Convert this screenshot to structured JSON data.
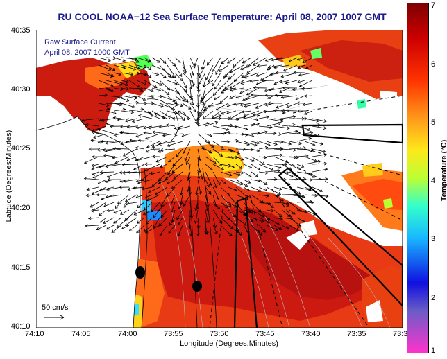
{
  "title": "RU COOL  NOAA−12  Sea Surface Temperature:  April 08, 2007 1007 GMT",
  "legend": {
    "line1": "Raw Surface Current",
    "line2": "April 08, 2007 1000 GMT"
  },
  "axes": {
    "xlabel": "Longitude (Degrees:Minutes)",
    "ylabel": "Latitude (Degrees:Minutes)",
    "xticks": [
      "74:10",
      "74:05",
      "74:00",
      "73:55",
      "73:50",
      "73:45",
      "73:40",
      "73:35",
      "73:3"
    ],
    "yticks": [
      "40:35",
      "40:30",
      "40:25",
      "40:20",
      "40:15",
      "40:10"
    ]
  },
  "scale_label": "50 cm/s",
  "colorbar": {
    "label": "Temperature (°C)",
    "ticks": [
      "7",
      "6",
      "5",
      "4",
      "3",
      "2",
      "1"
    ],
    "range": [
      1,
      7
    ],
    "colors": [
      "#ff33cc",
      "#6a5cc7",
      "#1010e0",
      "#19b9ff",
      "#33ffcc",
      "#bbff33",
      "#ffe81a",
      "#ff9a1a",
      "#ff3300",
      "#cc0000",
      "#800000"
    ]
  },
  "colors": {
    "title": "#1a1a8c",
    "land": "#ffffff",
    "warm": "#e83010",
    "hot": "#c81010",
    "arrow": "#000000"
  }
}
